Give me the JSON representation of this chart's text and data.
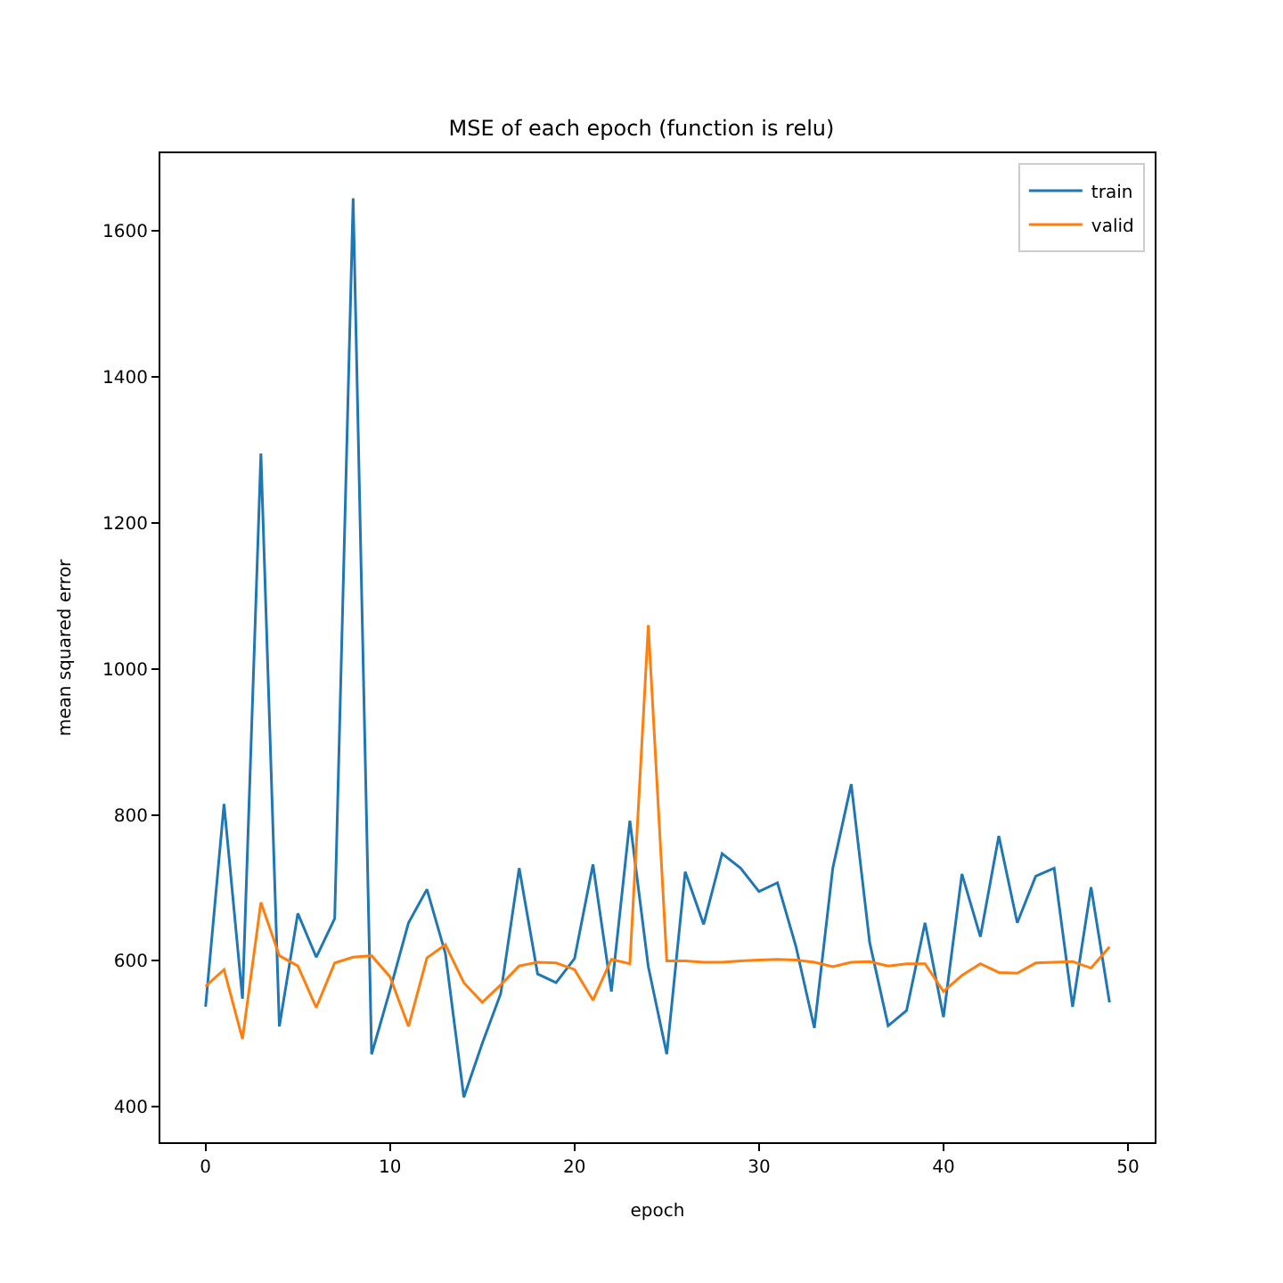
{
  "chart_data": {
    "type": "line",
    "title": "MSE of each epoch (function is relu)",
    "xlabel": "epoch",
    "ylabel": "mean squared error",
    "x": [
      0,
      1,
      2,
      3,
      4,
      5,
      6,
      7,
      8,
      9,
      10,
      11,
      12,
      13,
      14,
      15,
      16,
      17,
      18,
      19,
      20,
      21,
      22,
      23,
      24,
      25,
      26,
      27,
      28,
      29,
      30,
      31,
      32,
      33,
      34,
      35,
      36,
      37,
      38,
      39,
      40,
      41,
      42,
      43,
      44,
      45,
      46,
      47,
      48,
      49
    ],
    "series": [
      {
        "name": "train",
        "color": "#1f77b4",
        "values": [
          537,
          815,
          548,
          1295,
          510,
          665,
          605,
          658,
          1645,
          472,
          560,
          652,
          698,
          610,
          413,
          487,
          555,
          727,
          582,
          570,
          603,
          732,
          558,
          792,
          592,
          472,
          722,
          650,
          747,
          727,
          695,
          707,
          620,
          508,
          727,
          842,
          625,
          511,
          532,
          652,
          523,
          719,
          633,
          771,
          652,
          716,
          727,
          537,
          701,
          543
        ]
      },
      {
        "name": "valid",
        "color": "#ff7f0e",
        "values": [
          565,
          588,
          493,
          680,
          607,
          593,
          536,
          597,
          605,
          607,
          578,
          510,
          604,
          622,
          570,
          543,
          567,
          593,
          598,
          597,
          588,
          546,
          602,
          596,
          1060,
          600,
          600,
          598,
          598,
          600,
          601,
          602,
          601,
          598,
          592,
          598,
          599,
          593,
          596,
          596,
          558,
          580,
          596,
          584,
          583,
          597,
          598,
          599,
          590,
          619
        ]
      }
    ],
    "xlim": [
      -2.45,
      51.45
    ],
    "xticks": [
      0,
      10,
      20,
      30,
      40,
      50
    ],
    "ylim": [
      351.4,
      1706.6
    ],
    "yticks": [
      400,
      600,
      800,
      1000,
      1200,
      1400,
      1600
    ],
    "legend": "top right",
    "marker": "none",
    "line_style": "solid"
  }
}
